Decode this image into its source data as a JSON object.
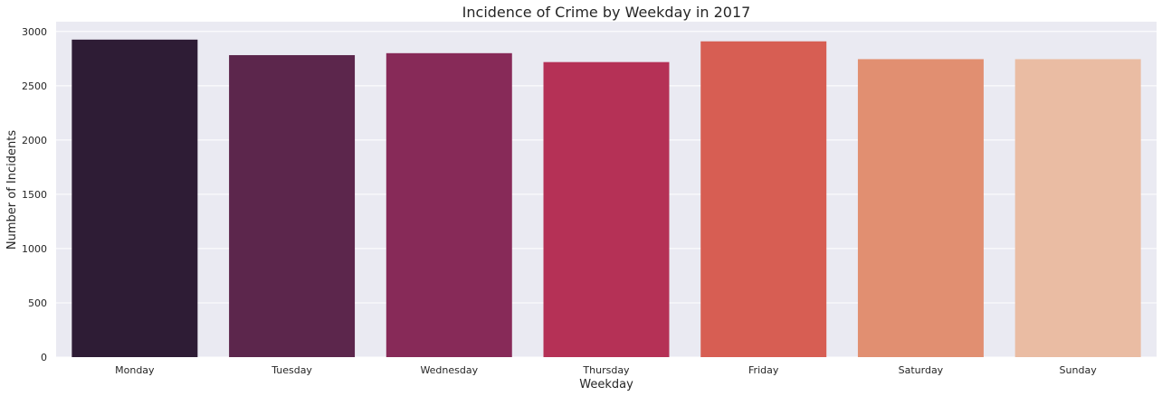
{
  "chart_data": {
    "type": "bar",
    "title": "Incidence of Crime by Weekday in 2017",
    "xlabel": "Weekday",
    "ylabel": "Number of Incidents",
    "categories": [
      "Monday",
      "Tuesday",
      "Wednesday",
      "Thursday",
      "Friday",
      "Saturday",
      "Sunday"
    ],
    "values": [
      2925,
      2782,
      2800,
      2718,
      2909,
      2745,
      2745
    ],
    "ylim": [
      0,
      3090
    ],
    "yticks": [
      0,
      500,
      1000,
      1500,
      2000,
      2500,
      3000
    ],
    "grid": true,
    "legend": "none",
    "colors": [
      "#2e1c35",
      "#5c264c",
      "#872a58",
      "#b53156",
      "#d75e53",
      "#e18f71",
      "#eabca3"
    ],
    "background": "#eaeaf2",
    "grid_color": "#ffffff"
  }
}
